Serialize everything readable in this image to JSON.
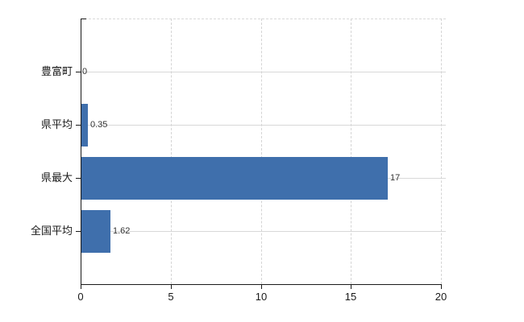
{
  "chart_data": {
    "type": "bar",
    "orientation": "horizontal",
    "title": "",
    "xlabel": "",
    "ylabel": "",
    "categories": [
      "豊富町",
      "県平均",
      "県最大",
      "全国平均"
    ],
    "values": [
      0,
      0.35,
      17,
      1.62
    ],
    "value_labels": [
      "0",
      "0.35",
      "17",
      "1.62"
    ],
    "x_tick_labels": [
      "0",
      "5",
      "10",
      "15",
      "20"
    ],
    "x_tick_values": [
      0,
      5,
      10,
      15,
      20
    ],
    "xlim": [
      0,
      20.3
    ],
    "grid": "on",
    "legend": "none",
    "colors": {
      "bar": "#3f6fac",
      "axis": "#1a1a1a",
      "grid_horizontal": "#d8d8d8",
      "grid_vertical": "#d4d4d4",
      "label_text": "#1a1a1a",
      "value_text": "#333333",
      "background": "#ffffff"
    }
  }
}
